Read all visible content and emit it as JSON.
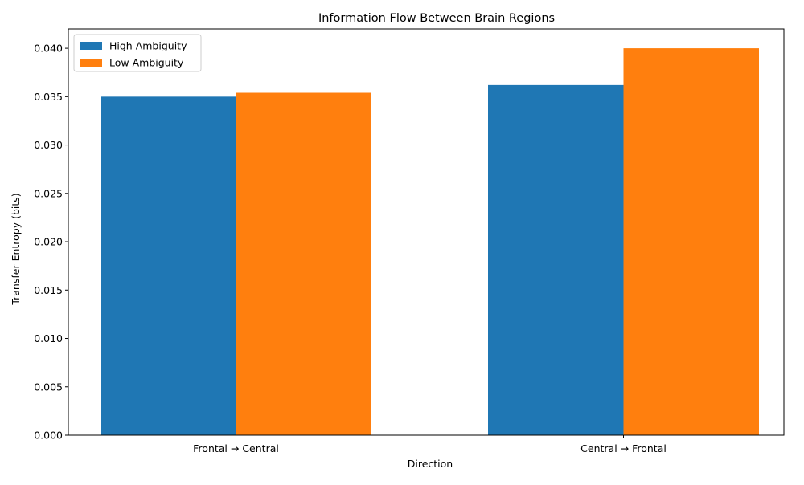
{
  "chart_data": {
    "type": "bar",
    "title": "Information Flow Between Brain Regions",
    "xlabel": "Direction",
    "ylabel": "Transfer Entropy (bits)",
    "categories": [
      "Frontal → Central",
      "Central → Frontal"
    ],
    "series": [
      {
        "name": "High Ambiguity",
        "values": [
          0.035,
          0.0362
        ],
        "color": "#1f77b4"
      },
      {
        "name": "Low Ambiguity",
        "values": [
          0.0354,
          0.04
        ],
        "color": "#ff7f0e"
      }
    ],
    "ylim": [
      0,
      0.042
    ],
    "yticks": [
      "0.000",
      "0.005",
      "0.010",
      "0.015",
      "0.020",
      "0.025",
      "0.030",
      "0.035",
      "0.040"
    ],
    "legend_position": "top-left",
    "grid": false
  }
}
